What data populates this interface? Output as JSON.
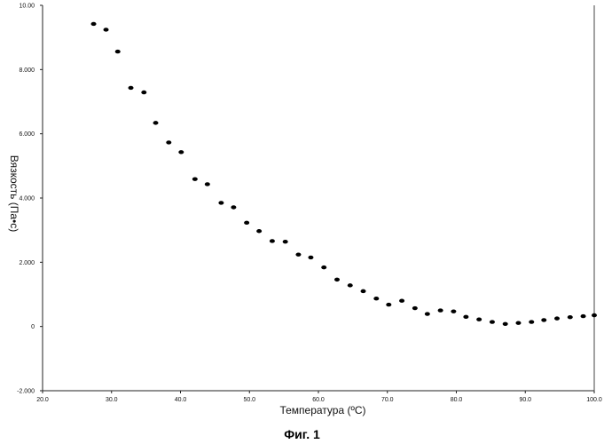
{
  "chart_data": {
    "type": "scatter",
    "xlabel": "Температура (ºC)",
    "ylabel": "Вязкость (Па•с)",
    "xlim": [
      20,
      100
    ],
    "ylim": [
      -2000,
      10000
    ],
    "x_ticks": [
      {
        "value": 20,
        "label": "20.0"
      },
      {
        "value": 30,
        "label": "30.0"
      },
      {
        "value": 40,
        "label": "40.0"
      },
      {
        "value": 50,
        "label": "50.0"
      },
      {
        "value": 60,
        "label": "60.0"
      },
      {
        "value": 70,
        "label": "70.0"
      },
      {
        "value": 80,
        "label": "80.0"
      },
      {
        "value": 90,
        "label": "90.0"
      },
      {
        "value": 100,
        "label": "100.0"
      }
    ],
    "y_ticks": [
      {
        "value": 10000,
        "label": "10.00"
      },
      {
        "value": 8000,
        "label": "8.000"
      },
      {
        "value": 6000,
        "label": "6.000"
      },
      {
        "value": 4000,
        "label": "4.000"
      },
      {
        "value": 2000,
        "label": "2.000"
      },
      {
        "value": 0,
        "label": "0"
      },
      {
        "value": -2000,
        "label": "-2.000"
      }
    ],
    "grid": false,
    "points": [
      {
        "x": 27.4,
        "y": 9420
      },
      {
        "x": 29.2,
        "y": 9240
      },
      {
        "x": 30.9,
        "y": 8560
      },
      {
        "x": 32.8,
        "y": 7430
      },
      {
        "x": 34.7,
        "y": 7290
      },
      {
        "x": 36.4,
        "y": 6340
      },
      {
        "x": 38.3,
        "y": 5730
      },
      {
        "x": 40.1,
        "y": 5430
      },
      {
        "x": 42.1,
        "y": 4590
      },
      {
        "x": 43.9,
        "y": 4430
      },
      {
        "x": 45.9,
        "y": 3850
      },
      {
        "x": 47.7,
        "y": 3710
      },
      {
        "x": 49.6,
        "y": 3230
      },
      {
        "x": 51.4,
        "y": 2970
      },
      {
        "x": 53.3,
        "y": 2660
      },
      {
        "x": 55.2,
        "y": 2640
      },
      {
        "x": 57.1,
        "y": 2240
      },
      {
        "x": 58.9,
        "y": 2150
      },
      {
        "x": 60.8,
        "y": 1840
      },
      {
        "x": 62.7,
        "y": 1460
      },
      {
        "x": 64.6,
        "y": 1280
      },
      {
        "x": 66.5,
        "y": 1100
      },
      {
        "x": 68.4,
        "y": 870
      },
      {
        "x": 70.2,
        "y": 680
      },
      {
        "x": 72.1,
        "y": 800
      },
      {
        "x": 74.0,
        "y": 570
      },
      {
        "x": 75.8,
        "y": 390
      },
      {
        "x": 77.7,
        "y": 500
      },
      {
        "x": 79.6,
        "y": 470
      },
      {
        "x": 81.4,
        "y": 300
      },
      {
        "x": 83.3,
        "y": 220
      },
      {
        "x": 85.2,
        "y": 140
      },
      {
        "x": 87.1,
        "y": 80
      },
      {
        "x": 89.0,
        "y": 110
      },
      {
        "x": 90.9,
        "y": 140
      },
      {
        "x": 92.7,
        "y": 200
      },
      {
        "x": 94.6,
        "y": 250
      },
      {
        "x": 96.5,
        "y": 290
      },
      {
        "x": 98.4,
        "y": 320
      },
      {
        "x": 100.0,
        "y": 350
      }
    ]
  },
  "caption": "Фиг. 1"
}
